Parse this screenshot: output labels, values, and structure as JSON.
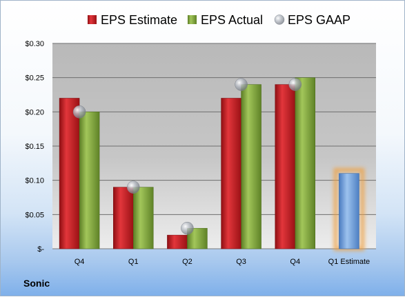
{
  "company": "Sonic",
  "chart_data": {
    "type": "bar",
    "categories": [
      "Q4",
      "Q1",
      "Q2",
      "Q3",
      "Q4",
      "Q1 Estimate"
    ],
    "series": [
      {
        "name": "EPS Estimate",
        "color": "#c0171d",
        "values": [
          0.22,
          0.09,
          0.02,
          0.22,
          0.24,
          null
        ]
      },
      {
        "name": "EPS Actual",
        "color": "#7ea33a",
        "values": [
          0.2,
          0.09,
          0.03,
          0.24,
          0.25,
          null
        ]
      },
      {
        "name": "EPS GAAP",
        "color": "#9aa0a8",
        "marker": "sphere",
        "values": [
          0.2,
          0.09,
          0.03,
          0.24,
          0.24,
          null
        ]
      }
    ],
    "forecast": {
      "category": "Q1 Estimate",
      "value": 0.11,
      "color": "#6fa0dc",
      "glow_color": "#f0a040"
    },
    "y_ticks": [
      0,
      0.05,
      0.1,
      0.15,
      0.2,
      0.25,
      0.3
    ],
    "y_tick_labels": [
      "$-",
      "$0.05",
      "$0.10",
      "$0.15",
      "$0.20",
      "$0.25",
      "$0.30"
    ],
    "ylim": [
      0,
      0.3
    ],
    "grid": true,
    "legend_position": "top",
    "title": "",
    "xlabel": "",
    "ylabel": ""
  }
}
